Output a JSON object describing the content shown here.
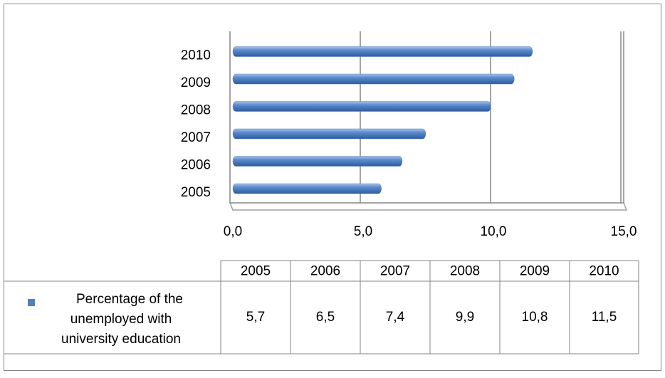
{
  "chart_data": {
    "type": "bar",
    "orientation": "horizontal",
    "categories": [
      "2005",
      "2006",
      "2007",
      "2008",
      "2009",
      "2010"
    ],
    "series": [
      {
        "name": "Percentage of the unemployed with university education",
        "color": "#4f81bd",
        "values": [
          5.7,
          6.5,
          7.4,
          9.9,
          10.8,
          11.5
        ],
        "value_labels": [
          "5,7",
          "6,5",
          "7,4",
          "9,9",
          "10,8",
          "11,5"
        ]
      }
    ],
    "xlim": [
      0,
      15
    ],
    "xticks": [
      {
        "value": 0,
        "label": "0,0"
      },
      {
        "value": 5,
        "label": "5,0"
      },
      {
        "value": 10,
        "label": "10,0"
      },
      {
        "value": 15,
        "label": "15,0"
      }
    ],
    "grid": true,
    "data_table": true
  }
}
